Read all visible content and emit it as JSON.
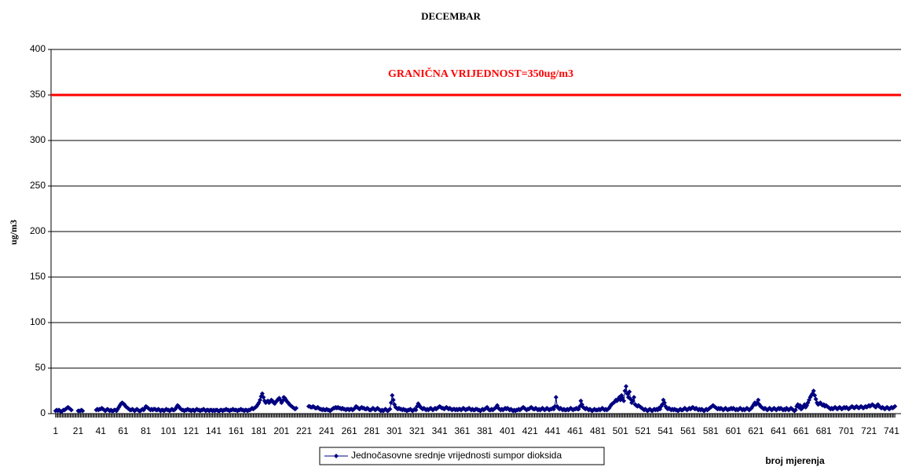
{
  "chart_data": {
    "type": "line",
    "title": "DECEMBAR",
    "ylabel": "ug/m3",
    "xlabel": "broj mjerenja",
    "annotation": "GRANIČNA VRIJEDNOST=350ug/m3",
    "threshold": 350,
    "threshold_color": "#ff0000",
    "ylim": [
      0,
      400
    ],
    "yticks": [
      0,
      50,
      100,
      150,
      200,
      250,
      300,
      350,
      400
    ],
    "grid": true,
    "legend": "bottom",
    "categories": [
      "1",
      null,
      null,
      null,
      null,
      null,
      null,
      null,
      null,
      null,
      null,
      null,
      null,
      null,
      null,
      null,
      null,
      null,
      null,
      null,
      "21",
      null,
      null,
      null,
      null,
      null,
      null,
      null,
      null,
      null,
      null,
      null,
      null,
      null,
      null,
      null,
      null,
      null,
      null,
      null,
      "41",
      null,
      null,
      null,
      null,
      null,
      null,
      null,
      null,
      null,
      null,
      null,
      null,
      null,
      null,
      null,
      null,
      null,
      null,
      null,
      "61",
      null,
      null,
      null,
      null,
      null,
      null,
      null,
      null,
      null,
      null,
      null,
      null,
      null,
      null,
      null,
      null,
      null,
      null,
      null,
      "81",
      null,
      null,
      null,
      null,
      null,
      null,
      null,
      null,
      null,
      null,
      null,
      null,
      null,
      null,
      null,
      null,
      null,
      null,
      null,
      "101",
      null,
      null,
      null,
      null,
      null,
      null,
      null,
      null,
      null,
      null,
      null,
      null,
      null,
      null,
      null,
      null,
      null,
      null,
      null,
      "121",
      null,
      null,
      null,
      null,
      null,
      null,
      null,
      null,
      null,
      null,
      null,
      null,
      null,
      null,
      null,
      null,
      null,
      null,
      null,
      "141",
      null,
      null,
      null,
      null,
      null,
      null,
      null,
      null,
      null,
      null,
      null,
      null,
      null,
      null,
      null,
      null,
      null,
      null,
      null,
      "161",
      null,
      null,
      null,
      null,
      null,
      null,
      null,
      null,
      null,
      null,
      null,
      null,
      null,
      null,
      null,
      null,
      null,
      null,
      null,
      "181",
      null,
      null,
      null,
      null,
      null,
      null,
      null,
      null,
      null,
      null,
      null,
      null,
      null,
      null,
      null,
      null,
      null,
      null,
      null,
      "201",
      null,
      null,
      null,
      null,
      null,
      null,
      null,
      null,
      null,
      null,
      null,
      null,
      null,
      null,
      null,
      null,
      null,
      null,
      null,
      "221",
      null,
      null,
      null,
      null,
      null,
      null,
      null,
      null,
      null,
      null,
      null,
      null,
      null,
      null,
      null,
      null,
      null,
      null,
      null,
      "241",
      null,
      null,
      null,
      null,
      null,
      null,
      null,
      null,
      null,
      null,
      null,
      null,
      null,
      null,
      null,
      null,
      null,
      null,
      null,
      "261",
      null,
      null,
      null,
      null,
      null,
      null,
      null,
      null,
      null,
      null,
      null,
      null,
      null,
      null,
      null,
      null,
      null,
      null,
      null,
      "281",
      null,
      null,
      null,
      null,
      null,
      null,
      null,
      null,
      null,
      null,
      null,
      null,
      null,
      null,
      null,
      null,
      null,
      null,
      null,
      "301",
      null,
      null,
      null,
      null,
      null,
      null,
      null,
      null,
      null,
      null,
      null,
      null,
      null,
      null,
      null,
      null,
      null,
      null,
      null,
      "321",
      null,
      null,
      null,
      null,
      null,
      null,
      null,
      null,
      null,
      null,
      null,
      null,
      null,
      null,
      null,
      null,
      null,
      null,
      null,
      "341",
      null,
      null,
      null,
      null,
      null,
      null,
      null,
      null,
      null,
      null,
      null,
      null,
      null,
      null,
      null,
      null,
      null,
      null,
      null,
      "361",
      null,
      null,
      null,
      null,
      null,
      null,
      null,
      null,
      null,
      null,
      null,
      null,
      null,
      null,
      null,
      null,
      null,
      null,
      null,
      "381",
      null,
      null,
      null,
      null,
      null,
      null,
      null,
      null,
      null,
      null,
      null,
      null,
      null,
      null,
      null,
      null,
      null,
      null,
      null,
      "401",
      null,
      null,
      null,
      null,
      null,
      null,
      null,
      null,
      null,
      null,
      null,
      null,
      null,
      null,
      null,
      null,
      null,
      null,
      null,
      "421",
      null,
      null,
      null,
      null,
      null,
      null,
      null,
      null,
      null,
      null,
      null,
      null,
      null,
      null,
      null,
      null,
      null,
      null,
      null,
      "441",
      null,
      null,
      null,
      null,
      null,
      null,
      null,
      null,
      null,
      null,
      null,
      null,
      null,
      null,
      null,
      null,
      null,
      null,
      null,
      "461",
      null,
      null,
      null,
      null,
      null,
      null,
      null,
      null,
      null,
      null,
      null,
      null,
      null,
      null,
      null,
      null,
      null,
      null,
      null,
      "481",
      null,
      null,
      null,
      null,
      null,
      null,
      null,
      null,
      null,
      null,
      null,
      null,
      null,
      null,
      null,
      null,
      null,
      null,
      null,
      "501",
      null,
      null,
      null,
      null,
      null,
      null,
      null,
      null,
      null,
      null,
      null,
      null,
      null,
      null,
      null,
      null,
      null,
      null,
      null,
      "521",
      null,
      null,
      null,
      null,
      null,
      null,
      null,
      null,
      null,
      null,
      null,
      null,
      null,
      null,
      null,
      null,
      null,
      null,
      null,
      "541",
      null,
      null,
      null,
      null,
      null,
      null,
      null,
      null,
      null,
      null,
      null,
      null,
      null,
      null,
      null,
      null,
      null,
      null,
      null,
      "561",
      null,
      null,
      null,
      null,
      null,
      null,
      null,
      null,
      null,
      null,
      null,
      null,
      null,
      null,
      null,
      null,
      null,
      null,
      null,
      "581",
      null,
      null,
      null,
      null,
      null,
      null,
      null,
      null,
      null,
      null,
      null,
      null,
      null,
      null,
      null,
      null,
      null,
      null,
      null,
      "601",
      null,
      null,
      null,
      null,
      null,
      null,
      null,
      null,
      null,
      null,
      null,
      null,
      null,
      null,
      null,
      null,
      null,
      null,
      null,
      "621",
      null,
      null,
      null,
      null,
      null,
      null,
      null,
      null,
      null,
      null,
      null,
      null,
      null,
      null,
      null,
      null,
      null,
      null,
      null,
      "641",
      null,
      null,
      null,
      null,
      null,
      null,
      null,
      null,
      null,
      null,
      null,
      null,
      null,
      null,
      null,
      null,
      null,
      null,
      null,
      "661",
      null,
      null,
      null,
      null,
      null,
      null,
      null,
      null,
      null,
      null,
      null,
      null,
      null,
      null,
      null,
      null,
      null,
      null,
      null,
      "681",
      null,
      null,
      null,
      null,
      null,
      null,
      null,
      null,
      null,
      null,
      null,
      null,
      null,
      null,
      null,
      null,
      null,
      null,
      null,
      "701",
      null,
      null,
      null,
      null,
      null,
      null,
      null,
      null,
      null,
      null,
      null,
      null,
      null,
      null,
      null,
      null,
      null,
      null,
      null,
      "721",
      null,
      null,
      null,
      null,
      null,
      null,
      null,
      null,
      null,
      null,
      null,
      null,
      null,
      null,
      null,
      null,
      null,
      null,
      null,
      "741",
      null,
      null,
      null
    ],
    "series": [
      {
        "name": "Jednočasovne srednje vrijednosti sumpor dioksida",
        "color": "#000080",
        "values": [
          3,
          4,
          3,
          4,
          3,
          2,
          3,
          4,
          4,
          5,
          6,
          7,
          6,
          5,
          4,
          null,
          null,
          null,
          null,
          null,
          3,
          3,
          3,
          4,
          3,
          null,
          null,
          null,
          null,
          null,
          null,
          null,
          null,
          null,
          null,
          null,
          4,
          5,
          4,
          5,
          5,
          6,
          5,
          4,
          3,
          4,
          5,
          4,
          3,
          4,
          3,
          3,
          4,
          4,
          3,
          5,
          7,
          9,
          11,
          12,
          11,
          10,
          8,
          7,
          6,
          5,
          4,
          4,
          5,
          4,
          3,
          4,
          5,
          4,
          3,
          3,
          4,
          5,
          4,
          6,
          8,
          7,
          6,
          5,
          4,
          5,
          4,
          5,
          5,
          4,
          4,
          5,
          4,
          3,
          4,
          4,
          3,
          4,
          5,
          4,
          4,
          3,
          4,
          5,
          4,
          4,
          5,
          7,
          9,
          8,
          6,
          5,
          4,
          4,
          3,
          4,
          4,
          5,
          4,
          4,
          3,
          4,
          4,
          3,
          4,
          5,
          4,
          4,
          3,
          4,
          4,
          5,
          4,
          3,
          4,
          4,
          3,
          4,
          4,
          3,
          4,
          3,
          4,
          4,
          3,
          3,
          4,
          4,
          3,
          4,
          4,
          5,
          4,
          4,
          3,
          4,
          4,
          5,
          4,
          4,
          4,
          3,
          4,
          4,
          5,
          4,
          4,
          3,
          4,
          4,
          3,
          4,
          4,
          5,
          6,
          5,
          6,
          7,
          8,
          10,
          12,
          15,
          19,
          22,
          18,
          14,
          12,
          13,
          14,
          12,
          13,
          15,
          14,
          12,
          11,
          13,
          14,
          16,
          17,
          15,
          12,
          14,
          18,
          17,
          15,
          13,
          12,
          10,
          9,
          8,
          7,
          6,
          5,
          6,
          null,
          null,
          null,
          null,
          null,
          null,
          null,
          null,
          null,
          null,
          8,
          8,
          7,
          7,
          8,
          7,
          6,
          6,
          7,
          6,
          5,
          5,
          4,
          5,
          4,
          4,
          5,
          4,
          4,
          3,
          4,
          5,
          6,
          6,
          7,
          6,
          7,
          6,
          6,
          5,
          6,
          5,
          5,
          4,
          5,
          5,
          4,
          5,
          5,
          4,
          5,
          6,
          8,
          7,
          6,
          5,
          6,
          7,
          6,
          6,
          5,
          5,
          6,
          5,
          4,
          4,
          5,
          6,
          5,
          4,
          5,
          6,
          5,
          4,
          3,
          4,
          3,
          4,
          5,
          4,
          3,
          4,
          5,
          12,
          20,
          15,
          10,
          7,
          6,
          5,
          6,
          5,
          5,
          4,
          5,
          4,
          4,
          3,
          4,
          4,
          5,
          4,
          3,
          4,
          5,
          4,
          8,
          11,
          9,
          7,
          6,
          5,
          6,
          5,
          4,
          5,
          4,
          5,
          6,
          5,
          4,
          5,
          6,
          5,
          6,
          7,
          8,
          7,
          6,
          6,
          5,
          6,
          7,
          6,
          5,
          6,
          5,
          4,
          5,
          5,
          4,
          5,
          4,
          5,
          5,
          4,
          5,
          6,
          5,
          4,
          5,
          5,
          6,
          5,
          4,
          5,
          4,
          4,
          5,
          5,
          4,
          4,
          3,
          4,
          5,
          4,
          5,
          6,
          7,
          5,
          4,
          4,
          5,
          4,
          5,
          6,
          7,
          9,
          6,
          5,
          4,
          5,
          4,
          5,
          6,
          5,
          6,
          5,
          4,
          5,
          4,
          3,
          4,
          3,
          4,
          4,
          5,
          4,
          5,
          6,
          7,
          6,
          5,
          4,
          5,
          5,
          6,
          7,
          6,
          5,
          5,
          6,
          5,
          4,
          5,
          4,
          5,
          6,
          5,
          4,
          5,
          6,
          5,
          4,
          5,
          5,
          6,
          5,
          8,
          18,
          8,
          6,
          5,
          6,
          5,
          4,
          5,
          4,
          4,
          5,
          4,
          5,
          6,
          5,
          4,
          5,
          5,
          6,
          5,
          5,
          8,
          14,
          10,
          7,
          6,
          5,
          6,
          5,
          4,
          5,
          4,
          3,
          4,
          5,
          4,
          4,
          4,
          5,
          4,
          5,
          6,
          5,
          4,
          5,
          4,
          5,
          6,
          8,
          10,
          11,
          12,
          13,
          15,
          14,
          16,
          18,
          15,
          20,
          17,
          14,
          25,
          30,
          22,
          18,
          24,
          16,
          12,
          14,
          18,
          10,
          9,
          8,
          9,
          8,
          7,
          6,
          5,
          4,
          5,
          4,
          3,
          4,
          5,
          4,
          3,
          4,
          5,
          4,
          5,
          4,
          6,
          5,
          8,
          10,
          15,
          12,
          8,
          6,
          5,
          6,
          5,
          4,
          5,
          4,
          5,
          4,
          4,
          3,
          4,
          5,
          4,
          4,
          5,
          6,
          5,
          4,
          5,
          6,
          5,
          6,
          7,
          6,
          5,
          6,
          5,
          4,
          5,
          4,
          5,
          4,
          3,
          4,
          5,
          4,
          5,
          6,
          7,
          8,
          9,
          8,
          7,
          6,
          5,
          6,
          5,
          6,
          5,
          4,
          5,
          6,
          5,
          4,
          5,
          5,
          6,
          5,
          6,
          5,
          4,
          5,
          4,
          5,
          6,
          5,
          4,
          5,
          4,
          5,
          6,
          5,
          4,
          5,
          6,
          8,
          10,
          12,
          10,
          12,
          15,
          10,
          8,
          7,
          6,
          5,
          6,
          5,
          4,
          5,
          6,
          5,
          4,
          5,
          6,
          5,
          4,
          5,
          6,
          5,
          6,
          5,
          4,
          5,
          4,
          6,
          5,
          4,
          5,
          6,
          5,
          4,
          3,
          4,
          8,
          10,
          7,
          9,
          5,
          6,
          8,
          10,
          7,
          9,
          12,
          15,
          18,
          20,
          22,
          25,
          20,
          16,
          12,
          10,
          11,
          12,
          10,
          9,
          10,
          8,
          9,
          8,
          7,
          6,
          5,
          6,
          5,
          6,
          7,
          6,
          5,
          6,
          7,
          6,
          5,
          6,
          7,
          6,
          7,
          6,
          5,
          6,
          7,
          8,
          7,
          6,
          7,
          8,
          7,
          6,
          7,
          8,
          7,
          6,
          7,
          8,
          7,
          8,
          9,
          8,
          9,
          10,
          9,
          8,
          7,
          9,
          10,
          8,
          7,
          6,
          7,
          6,
          5,
          6,
          7,
          6,
          5,
          6,
          7,
          6,
          7,
          8
        ]
      }
    ]
  }
}
